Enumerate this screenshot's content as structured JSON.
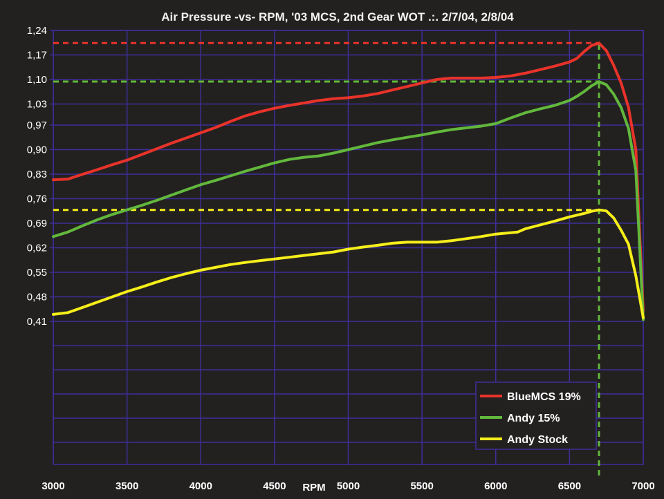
{
  "chart_data": {
    "type": "line",
    "title": "Air Pressure -vs- RPM, '03 MCS, 2nd Gear WOT .:. 2/7/04, 2/8/04",
    "xlabel": "RPM",
    "ylabel": "",
    "xlim": [
      3000,
      7000
    ],
    "ylim": [
      0.41,
      1.24
    ],
    "x_ticks": [
      "3000",
      "3500",
      "4000",
      "4500",
      "5000",
      "5500",
      "6000",
      "6500",
      "7000"
    ],
    "x_tick_values": [
      3000,
      3500,
      4000,
      4500,
      5000,
      5500,
      6000,
      6500,
      7000
    ],
    "y_ticks": [
      "1,24",
      "1,17",
      "1,10",
      "1,03",
      "0,97",
      "0,90",
      "0,83",
      "0,76",
      "0,69",
      "0,62",
      "0,55",
      "0,48",
      "0,41"
    ],
    "y_tick_values": [
      1.24,
      1.17,
      1.1,
      1.03,
      0.97,
      0.9,
      0.83,
      0.76,
      0.69,
      0.62,
      0.55,
      0.48,
      0.41
    ],
    "grid": true,
    "legend_position": "bottom-right",
    "background_color": "#232020",
    "grid_color": "#3d2f99",
    "series": [
      {
        "name": "BlueMCS 19%",
        "color": "#e8332a",
        "x": [
          3000,
          3100,
          3200,
          3300,
          3400,
          3500,
          3600,
          3700,
          3800,
          3900,
          4000,
          4100,
          4200,
          4300,
          4400,
          4500,
          4600,
          4700,
          4800,
          4900,
          5000,
          5100,
          5200,
          5300,
          5400,
          5500,
          5600,
          5700,
          5800,
          5900,
          6000,
          6100,
          6200,
          6300,
          6400,
          6500,
          6550,
          6600,
          6650,
          6700,
          6750,
          6800,
          6850,
          6900,
          6950,
          7000
        ],
        "y": [
          0.814,
          0.816,
          0.83,
          0.843,
          0.857,
          0.87,
          0.886,
          0.902,
          0.918,
          0.933,
          0.948,
          0.963,
          0.98,
          0.996,
          1.008,
          1.018,
          1.026,
          1.033,
          1.04,
          1.045,
          1.048,
          1.053,
          1.06,
          1.07,
          1.08,
          1.09,
          1.1,
          1.104,
          1.104,
          1.104,
          1.106,
          1.11,
          1.118,
          1.128,
          1.138,
          1.15,
          1.16,
          1.18,
          1.197,
          1.204,
          1.182,
          1.14,
          1.09,
          1.02,
          0.9,
          0.44
        ]
      },
      {
        "name": "Andy 15%",
        "color": "#62b83c",
        "x": [
          3000,
          3100,
          3200,
          3300,
          3400,
          3500,
          3600,
          3700,
          3800,
          3900,
          4000,
          4100,
          4200,
          4300,
          4400,
          4500,
          4600,
          4700,
          4800,
          4900,
          5000,
          5100,
          5200,
          5300,
          5400,
          5500,
          5600,
          5700,
          5800,
          5900,
          6000,
          6100,
          6200,
          6300,
          6400,
          6500,
          6550,
          6600,
          6650,
          6700,
          6750,
          6800,
          6850,
          6900,
          6950,
          7000
        ],
        "y": [
          0.652,
          0.665,
          0.683,
          0.7,
          0.715,
          0.728,
          0.741,
          0.755,
          0.77,
          0.785,
          0.8,
          0.812,
          0.825,
          0.838,
          0.85,
          0.862,
          0.872,
          0.878,
          0.882,
          0.89,
          0.9,
          0.91,
          0.92,
          0.928,
          0.935,
          0.942,
          0.95,
          0.957,
          0.962,
          0.967,
          0.974,
          0.99,
          1.005,
          1.016,
          1.026,
          1.04,
          1.052,
          1.066,
          1.082,
          1.094,
          1.085,
          1.058,
          1.02,
          0.96,
          0.84,
          0.415
        ]
      },
      {
        "name": "Andy Stock",
        "color": "#f5ee1a",
        "x": [
          3000,
          3100,
          3200,
          3300,
          3400,
          3500,
          3600,
          3700,
          3800,
          3900,
          4000,
          4100,
          4200,
          4300,
          4400,
          4500,
          4600,
          4700,
          4800,
          4900,
          5000,
          5100,
          5200,
          5300,
          5400,
          5500,
          5600,
          5700,
          5800,
          5900,
          6000,
          6100,
          6150,
          6200,
          6300,
          6400,
          6500,
          6600,
          6650,
          6700,
          6750,
          6800,
          6850,
          6900,
          6950,
          7000
        ],
        "y": [
          0.43,
          0.435,
          0.45,
          0.465,
          0.48,
          0.495,
          0.508,
          0.522,
          0.535,
          0.546,
          0.556,
          0.564,
          0.572,
          0.578,
          0.583,
          0.588,
          0.593,
          0.598,
          0.603,
          0.608,
          0.616,
          0.622,
          0.627,
          0.633,
          0.636,
          0.636,
          0.636,
          0.64,
          0.646,
          0.652,
          0.659,
          0.663,
          0.665,
          0.674,
          0.685,
          0.696,
          0.708,
          0.718,
          0.724,
          0.728,
          0.725,
          0.705,
          0.67,
          0.63,
          0.54,
          0.42
        ]
      }
    ],
    "reference_lines": [
      {
        "axis": "y",
        "value": 1.204,
        "color": "#e8332a",
        "x_from": 3000,
        "x_to": 6700
      },
      {
        "axis": "y",
        "value": 1.094,
        "color": "#62b83c",
        "x_from": 3000,
        "x_to": 6700
      },
      {
        "axis": "y",
        "value": 0.728,
        "color": "#f5ee1a",
        "x_from": 3000,
        "x_to": 6700
      },
      {
        "axis": "x",
        "value": 6700,
        "color": "#62b83c"
      }
    ]
  }
}
